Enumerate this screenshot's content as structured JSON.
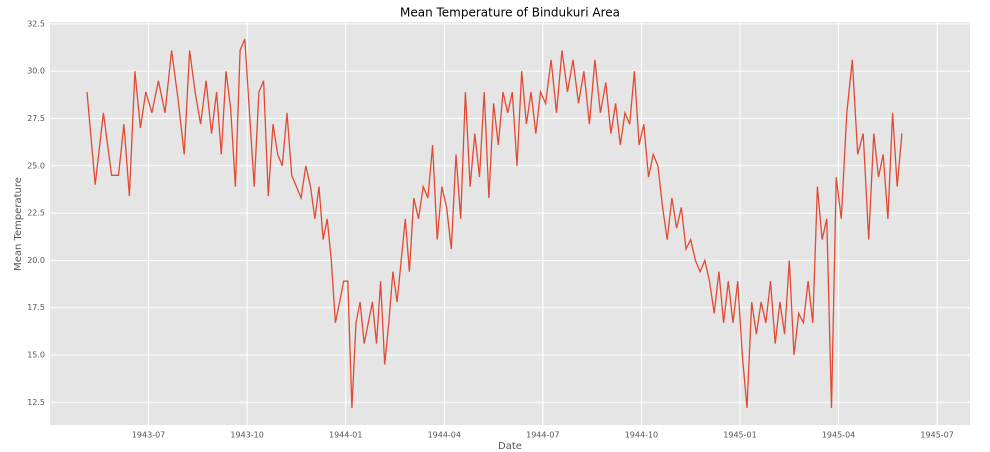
{
  "chart_data": {
    "type": "line",
    "title": "Mean Temperature of Bindukuri Area",
    "x_label": "Date",
    "y_label": "Mean Temperature",
    "color": "#e24a33",
    "grid": true,
    "x": [
      "1943-05",
      "1943-05",
      "1943-05",
      "1943-05",
      "1943-06",
      "1943-06",
      "1943-06",
      "1943-06",
      "1943-06",
      "1943-06",
      "1943-07",
      "1943-07",
      "1943-07",
      "1943-07",
      "1943-07",
      "1943-08",
      "1943-08",
      "1943-08",
      "1943-08",
      "1943-08",
      "1943-08",
      "1943-09",
      "1943-09",
      "1943-09",
      "1943-09",
      "1943-09",
      "1943-09",
      "1943-09",
      "1943-10",
      "1943-10",
      "1943-10",
      "1943-10",
      "1943-10",
      "1943-10",
      "1943-10",
      "1943-11",
      "1943-11",
      "1943-11",
      "1943-11",
      "1943-11",
      "1943-11",
      "1943-11",
      "1943-12",
      "1943-12",
      "1943-12",
      "1943-12",
      "1943-12",
      "1943-12",
      "1943-12",
      "1943-12",
      "1944-01",
      "1944-01",
      "1944-01",
      "1944-01",
      "1944-01",
      "1944-01",
      "1944-01",
      "1944-01",
      "1944-02",
      "1944-02",
      "1944-02",
      "1944-02",
      "1944-02",
      "1944-02",
      "1944-02",
      "1944-02",
      "1944-03",
      "1944-03",
      "1944-03",
      "1944-03",
      "1944-03",
      "1944-03",
      "1944-03",
      "1944-04",
      "1944-04",
      "1944-04",
      "1944-04",
      "1944-04",
      "1944-04",
      "1944-04",
      "1944-05",
      "1944-05",
      "1944-05",
      "1944-05",
      "1944-05",
      "1944-05",
      "1944-05",
      "1944-06",
      "1944-06",
      "1944-06",
      "1944-06",
      "1944-06",
      "1944-06",
      "1944-06",
      "1944-07",
      "1944-07",
      "1944-07",
      "1944-07",
      "1944-07",
      "1944-07",
      "1944-08",
      "1944-08",
      "1944-08",
      "1944-08",
      "1944-08",
      "1944-08",
      "1944-09",
      "1944-09",
      "1944-09",
      "1944-09",
      "1944-09",
      "1944-09",
      "1944-09",
      "1944-10",
      "1944-10",
      "1944-10",
      "1944-10",
      "1944-10",
      "1944-10",
      "1944-10",
      "1944-11",
      "1944-11",
      "1944-11",
      "1944-11",
      "1944-11",
      "1944-11",
      "1944-11",
      "1944-12",
      "1944-12",
      "1944-12",
      "1944-12",
      "1944-12",
      "1944-12",
      "1944-12",
      "1945-01",
      "1945-01",
      "1945-01",
      "1945-01",
      "1945-01",
      "1945-01",
      "1945-01",
      "1945-02",
      "1945-02",
      "1945-02",
      "1945-02",
      "1945-02",
      "1945-02",
      "1945-02",
      "1945-03",
      "1945-03",
      "1945-03",
      "1945-03",
      "1945-03",
      "1945-03",
      "1945-03",
      "1945-04",
      "1945-04",
      "1945-04",
      "1945-04",
      "1945-04",
      "1945-04",
      "1945-05",
      "1945-05",
      "1945-05",
      "1945-05",
      "1945-05",
      "1945-05",
      "1945-05"
    ],
    "values": [
      28.9,
      24.0,
      27.8,
      24.5,
      24.5,
      27.2,
      23.4,
      30.0,
      27.0,
      28.9,
      27.8,
      29.5,
      27.8,
      31.1,
      28.5,
      25.6,
      31.1,
      28.9,
      27.2,
      29.5,
      26.7,
      28.9,
      25.6,
      30.0,
      28.0,
      23.9,
      31.1,
      31.7,
      27.8,
      23.9,
      28.9,
      29.5,
      23.4,
      27.2,
      25.6,
      25.0,
      27.8,
      24.5,
      23.9,
      23.3,
      25.0,
      23.9,
      22.2,
      23.9,
      21.1,
      22.2,
      20.0,
      16.7,
      17.8,
      18.9,
      18.9,
      12.2,
      16.7,
      17.8,
      15.6,
      16.7,
      17.8,
      15.6,
      18.9,
      14.5,
      16.7,
      19.4,
      17.8,
      20.0,
      22.2,
      19.4,
      23.3,
      22.2,
      23.9,
      23.3,
      26.1,
      21.1,
      23.9,
      22.8,
      20.6,
      25.6,
      22.2,
      28.9,
      23.9,
      26.7,
      24.4,
      28.9,
      23.3,
      28.3,
      26.1,
      28.9,
      27.8,
      28.9,
      25.0,
      30.0,
      27.2,
      28.9,
      26.7,
      28.9,
      28.3,
      30.6,
      27.8,
      31.1,
      28.9,
      30.6,
      28.3,
      30.0,
      27.2,
      30.6,
      27.8,
      29.4,
      26.7,
      28.3,
      26.1,
      27.8,
      27.2,
      30.0,
      26.1,
      27.2,
      24.4,
      25.6,
      25.0,
      22.8,
      21.1,
      23.3,
      21.7,
      22.8,
      20.6,
      21.1,
      20.0,
      19.4,
      20.0,
      18.9,
      17.2,
      19.4,
      16.7,
      18.9,
      16.7,
      18.9,
      15.0,
      12.2,
      17.8,
      16.1,
      17.8,
      16.7,
      18.9,
      15.6,
      17.8,
      16.1,
      20.0,
      15.0,
      17.2,
      16.7,
      18.9,
      16.7,
      23.9,
      21.1,
      22.2,
      12.2,
      24.4,
      22.2,
      27.8,
      30.6,
      25.6,
      26.7,
      21.1,
      26.7,
      24.4,
      25.6,
      22.2,
      27.8,
      23.9,
      26.7
    ],
    "xlim": [
      "1943-04",
      "1945-08"
    ],
    "xticks": [
      "1943-07",
      "1943-10",
      "1944-01",
      "1944-04",
      "1944-07",
      "1944-10",
      "1945-01",
      "1945-04",
      "1945-07"
    ],
    "ylim": [
      11.3,
      32.6
    ],
    "yticks": [
      12.5,
      {
        "value": 15,
        "label": "15.0"
      },
      17.5,
      {
        "value": 20,
        "label": "20.0"
      },
      22.5,
      {
        "value": 25,
        "label": "25.0"
      },
      27.5,
      {
        "value": 30,
        "label": "30.0"
      },
      32.5
    ]
  }
}
